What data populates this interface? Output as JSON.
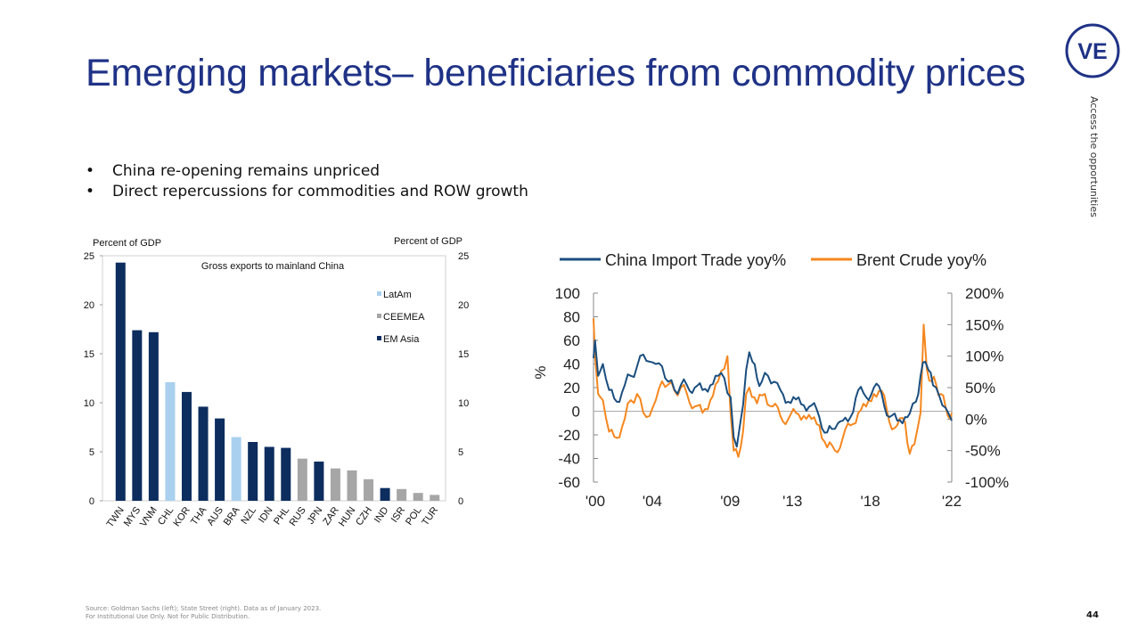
{
  "slide": {
    "title": "Emerging markets– beneficiaries from commodity prices",
    "bullets": [
      "China re-opening remains unpriced",
      "Direct repercussions for commodities and ROW growth"
    ],
    "side_text": "Access the opportunities",
    "logo_text": "VE",
    "footer_line1": "Source: Goldman Sachs (left); State Street (right). Data as of January 2023.",
    "footer_line2": "For Institutional Use Only. Not for Public Distribution.",
    "page_number": "44",
    "colors": {
      "title": "#1f3286",
      "em_asia": "#0c2d5e",
      "latam": "#a9d0ee",
      "ceemea": "#a6a6a6",
      "china": "#1b4e7e",
      "brent": "#f5871f"
    }
  },
  "chart_data": [
    {
      "type": "bar",
      "title": "Gross exports to mainland China",
      "ylabel": "Percent of GDP",
      "ylabel_right": "Percent of GDP",
      "ylim": [
        0,
        25
      ],
      "yticks": [
        0,
        5,
        10,
        15,
        20,
        25
      ],
      "categories": [
        "TWN",
        "MYS",
        "VNM",
        "CHL",
        "KOR",
        "THA",
        "AUS",
        "BRA",
        "NZL",
        "IDN",
        "PHL",
        "RUS",
        "JPN",
        "ZAR",
        "HUN",
        "CZH",
        "IND",
        "ISR",
        "POL",
        "TUR"
      ],
      "values": [
        24.3,
        17.4,
        17.2,
        12.1,
        11.1,
        9.6,
        8.4,
        6.5,
        6.0,
        5.5,
        5.4,
        4.3,
        4.0,
        3.3,
        3.1,
        2.2,
        1.3,
        1.2,
        0.8,
        0.6
      ],
      "groups": [
        "EM Asia",
        "EM Asia",
        "EM Asia",
        "LatAm",
        "EM Asia",
        "EM Asia",
        "EM Asia",
        "LatAm",
        "EM Asia",
        "EM Asia",
        "EM Asia",
        "CEEMEA",
        "EM Asia",
        "CEEMEA",
        "CEEMEA",
        "CEEMEA",
        "EM Asia",
        "CEEMEA",
        "CEEMEA",
        "CEEMEA"
      ],
      "legend": [
        "LatAm",
        "CEEMEA",
        "EM Asia"
      ]
    },
    {
      "type": "line",
      "legend": [
        "China Import Trade yoy%",
        "Brent Crude yoy%"
      ],
      "ylabel": "%",
      "ylim_left": [
        -60,
        100
      ],
      "yticks_left": [
        "100",
        "80",
        "60",
        "40",
        "20",
        "0",
        "-20",
        "-40",
        "-60"
      ],
      "ylim_right": [
        -100,
        200
      ],
      "yticks_right": [
        "200%",
        "150%",
        "100%",
        "50%",
        "0%",
        "-50%",
        "-100%"
      ],
      "xticks": [
        "'00",
        "'04",
        "'09",
        "'13",
        "'18",
        "'22"
      ],
      "xlim": [
        2000,
        2023
      ],
      "series": [
        {
          "name": "China Import Trade yoy%",
          "x": [
            2000.0,
            2000.1,
            2000.3,
            2000.6,
            2001.0,
            2001.5,
            2002.0,
            2002.4,
            2002.8,
            2003.2,
            2003.6,
            2004.0,
            2004.4,
            2004.8,
            2005.2,
            2005.6,
            2006.0,
            2006.5,
            2007.0,
            2007.5,
            2008.0,
            2008.4,
            2008.8,
            2009.0,
            2009.2,
            2009.4,
            2009.6,
            2009.8,
            2010.0,
            2010.2,
            2010.5,
            2010.8,
            2011.2,
            2011.6,
            2012.0,
            2012.5,
            2013.0,
            2013.5,
            2014.0,
            2014.5,
            2015.0,
            2015.3,
            2015.7,
            2016.0,
            2016.5,
            2017.0,
            2017.5,
            2018.0,
            2018.5,
            2019.0,
            2019.5,
            2020.0,
            2020.3,
            2020.7,
            2021.0,
            2021.3,
            2021.5,
            2021.8,
            2022.0,
            2022.4,
            2022.8,
            2023.0
          ],
          "values": [
            45,
            60,
            30,
            40,
            18,
            8,
            22,
            30,
            38,
            48,
            42,
            40,
            38,
            25,
            18,
            22,
            22,
            20,
            18,
            22,
            30,
            28,
            12,
            -22,
            -30,
            -12,
            5,
            35,
            50,
            42,
            28,
            25,
            30,
            25,
            18,
            8,
            10,
            5,
            5,
            -5,
            -18,
            -15,
            -10,
            -8,
            -5,
            18,
            12,
            20,
            15,
            -5,
            -8,
            -5,
            -2,
            8,
            30,
            42,
            35,
            22,
            20,
            5,
            -2,
            -8
          ]
        },
        {
          "name": "Brent Crude yoy%",
          "x": [
            2000.0,
            2000.1,
            2000.3,
            2000.6,
            2001.0,
            2001.5,
            2002.0,
            2002.4,
            2002.8,
            2003.2,
            2003.6,
            2004.0,
            2004.4,
            2004.8,
            2005.2,
            2005.6,
            2006.0,
            2006.5,
            2007.0,
            2007.5,
            2008.0,
            2008.4,
            2008.6,
            2008.8,
            2009.0,
            2009.3,
            2009.6,
            2009.8,
            2010.0,
            2010.5,
            2011.0,
            2011.5,
            2012.0,
            2012.5,
            2013.0,
            2013.5,
            2014.0,
            2014.5,
            2015.0,
            2015.5,
            2016.0,
            2016.5,
            2017.0,
            2017.5,
            2018.0,
            2018.5,
            2019.0,
            2019.5,
            2020.0,
            2020.3,
            2020.6,
            2021.0,
            2021.2,
            2021.4,
            2021.7,
            2022.0,
            2022.3,
            2022.6,
            2022.9,
            2023.0
          ],
          "values": [
            160,
            100,
            40,
            30,
            -20,
            -30,
            0,
            30,
            40,
            10,
            5,
            30,
            60,
            55,
            45,
            50,
            40,
            20,
            10,
            30,
            60,
            80,
            100,
            10,
            -50,
            -60,
            -20,
            40,
            50,
            25,
            40,
            20,
            5,
            0,
            10,
            5,
            0,
            -10,
            -45,
            -50,
            -30,
            -10,
            10,
            20,
            40,
            45,
            -5,
            -10,
            -5,
            -55,
            -40,
            10,
            150,
            80,
            60,
            55,
            40,
            20,
            0,
            10
          ]
        }
      ]
    }
  ]
}
